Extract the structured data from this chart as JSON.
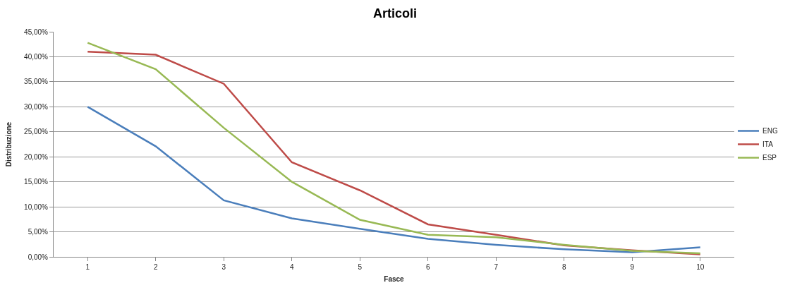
{
  "chart_data": {
    "type": "line",
    "title": "Articoli",
    "xlabel": "Fasce",
    "ylabel": "Distribuzione",
    "categories": [
      "1",
      "2",
      "3",
      "4",
      "5",
      "6",
      "7",
      "8",
      "9",
      "10"
    ],
    "series": [
      {
        "name": "ENG",
        "color": "#4a7ebb",
        "values": [
          30.0,
          22.1,
          11.3,
          7.7,
          5.6,
          3.6,
          2.4,
          1.5,
          0.9,
          1.9
        ]
      },
      {
        "name": "ITA",
        "color": "#be4b48",
        "values": [
          41.0,
          40.4,
          34.6,
          18.9,
          13.3,
          6.5,
          4.4,
          2.3,
          1.3,
          0.5
        ]
      },
      {
        "name": "ESP",
        "color": "#98b954",
        "values": [
          42.8,
          37.5,
          25.8,
          15.0,
          7.4,
          4.4,
          3.9,
          2.4,
          1.2,
          0.7
        ]
      }
    ],
    "ylim": [
      0,
      45
    ],
    "yticks": [
      {
        "value": 0,
        "label": "0,00%"
      },
      {
        "value": 5,
        "label": "5,00%"
      },
      {
        "value": 10,
        "label": "10,00%"
      },
      {
        "value": 15,
        "label": "15,00%"
      },
      {
        "value": 20,
        "label": "20,00%"
      },
      {
        "value": 25,
        "label": "25,00%"
      },
      {
        "value": 30,
        "label": "30,00%"
      },
      {
        "value": 35,
        "label": "35,00%"
      },
      {
        "value": 40,
        "label": "40,00%"
      },
      {
        "value": 45,
        "label": "45,00%"
      }
    ],
    "grid": "y",
    "legend": "right",
    "marker": "none",
    "line_style": "solid"
  }
}
